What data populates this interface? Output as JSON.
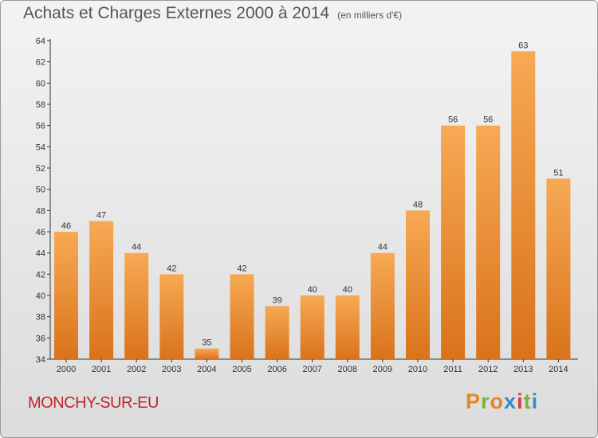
{
  "header": {
    "title": "Achats et Charges Externes 2000 à 2014",
    "units": "(en milliers d'€)"
  },
  "footer": {
    "location": "MONCHY-SUR-EU",
    "logo_letters": [
      "P",
      "r",
      "o",
      "x",
      "i",
      "t",
      "i"
    ],
    "logo_colors": [
      "#e8842a",
      "#7ab23a",
      "#e8842a",
      "#2f8fd0",
      "#d93a3a",
      "#7ab23a",
      "#2f8fd0"
    ]
  },
  "colors": {
    "bar_light": "#f7a954",
    "bar_dark": "#d9731b",
    "title": "#555555",
    "location": "#c0262b"
  },
  "chart_data": {
    "type": "bar",
    "title": "Achats et Charges Externes 2000 à 2014",
    "xlabel": "",
    "ylabel": "",
    "categories": [
      "2000",
      "2001",
      "2002",
      "2003",
      "2004",
      "2005",
      "2006",
      "2007",
      "2008",
      "2009",
      "2010",
      "2011",
      "2012",
      "2013",
      "2014"
    ],
    "values": [
      46,
      47,
      44,
      42,
      35,
      42,
      39,
      40,
      40,
      44,
      48,
      56,
      56,
      63,
      51
    ],
    "ylim": [
      34,
      64
    ],
    "yticks": [
      34,
      36,
      38,
      40,
      42,
      44,
      46,
      48,
      50,
      52,
      54,
      56,
      58,
      60,
      62,
      64
    ],
    "grid": false,
    "data_labels": true
  }
}
